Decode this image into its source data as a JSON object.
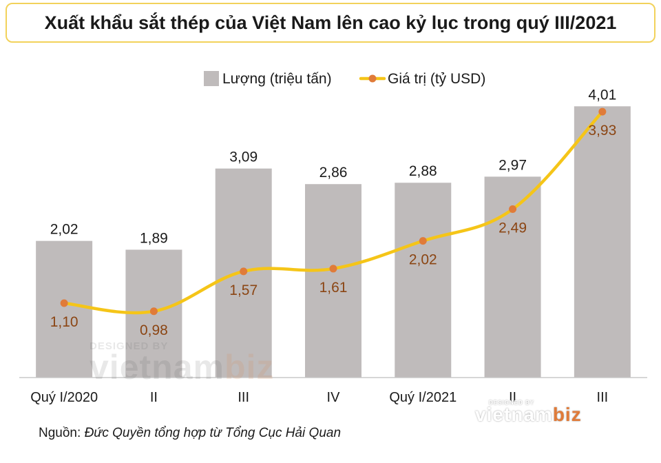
{
  "title": "Xuất khẩu sắt thép của Việt Nam lên cao kỷ lục trong quý III/2021",
  "source": {
    "label": "Nguồn:",
    "text": "Đức Quyền tổng hợp từ Tổng Cục Hải Quan"
  },
  "watermark": {
    "designed_by": "DESIGNED BY",
    "brand_main": "vietnam",
    "brand_accent": "biz"
  },
  "colors": {
    "bar": "#bfbbbb",
    "line": "#f5c518",
    "marker": "#e07b39",
    "line_label": "#8b4513",
    "title_border": "#f2d25a"
  },
  "chart_data": {
    "type": "bar",
    "categories": [
      "Quý I/2020",
      "II",
      "III",
      "IV",
      "Quý I/2021",
      "II",
      "III"
    ],
    "series": [
      {
        "name": "Lượng (triệu tấn)",
        "type": "bar",
        "values": [
          2.02,
          1.89,
          3.09,
          2.86,
          2.88,
          2.97,
          4.01
        ],
        "labels": [
          "2,02",
          "1,89",
          "3,09",
          "2,86",
          "2,88",
          "2,97",
          "4,01"
        ]
      },
      {
        "name": "Giá trị (tỷ USD)",
        "type": "line",
        "values": [
          1.1,
          0.98,
          1.57,
          1.61,
          2.02,
          2.49,
          3.93
        ],
        "labels": [
          "1,10",
          "0,98",
          "1,57",
          "1,61",
          "2,02",
          "2,49",
          "3,93"
        ]
      }
    ],
    "ylim": [
      0,
      4.4
    ],
    "grid": false,
    "legend_position": "top"
  }
}
